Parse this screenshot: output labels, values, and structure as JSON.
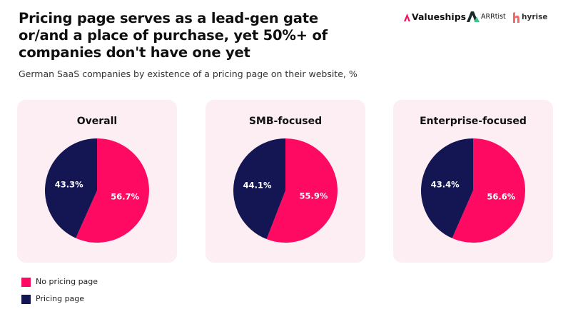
{
  "header": {
    "title": "Pricing page serves as a lead-gen gate or/and a place of purchase, yet 50%+ of companies don't have one yet",
    "subtitle": "German SaaS companies by existence of a pricing page on their website, %"
  },
  "logos": {
    "valueships": "Valueships",
    "arrtist": "ARRtist",
    "hyrise": "hyrise"
  },
  "colors": {
    "no_pricing": "#ff0a63",
    "pricing": "#141654",
    "card_bg": "#fdeef3"
  },
  "legend": [
    {
      "label": "No pricing page",
      "color": "#ff0a63"
    },
    {
      "label": "Pricing page",
      "color": "#141654"
    }
  ],
  "chart_data": [
    {
      "type": "pie",
      "title": "Overall",
      "labels": [
        "No pricing page",
        "Pricing page"
      ],
      "values": [
        56.7,
        43.3
      ],
      "value_labels": [
        "56.7%",
        "43.3%"
      ]
    },
    {
      "type": "pie",
      "title": "SMB-focused",
      "labels": [
        "No pricing page",
        "Pricing page"
      ],
      "values": [
        55.9,
        44.1
      ],
      "value_labels": [
        "55.9%",
        "44.1%"
      ]
    },
    {
      "type": "pie",
      "title": "Enterprise-focused",
      "labels": [
        "No pricing page",
        "Pricing page"
      ],
      "values": [
        56.6,
        43.4
      ],
      "value_labels": [
        "56.6%",
        "43.4%"
      ]
    }
  ]
}
